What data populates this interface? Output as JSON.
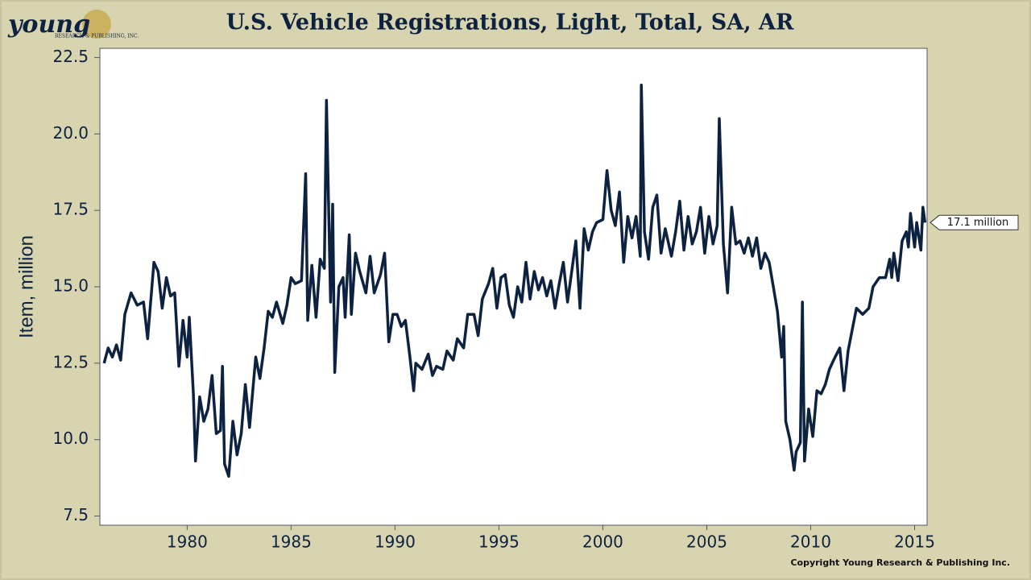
{
  "logo": {
    "name": "young",
    "sub": "RESEARCH & PUBLISHING, INC."
  },
  "chart_data": {
    "type": "line",
    "title": "U.S. Vehicle Registrations, Light, Total, SA, AR",
    "y_label": "Item, million",
    "copyright": "Copyright Young Research & Publishing Inc.",
    "annotation": "17.1 million",
    "xlim": [
      1975.8,
      2015.6
    ],
    "ylim": [
      7.2,
      22.8
    ],
    "xticks": [
      1980,
      1985,
      1990,
      1995,
      2000,
      2005,
      2010,
      2015
    ],
    "yticks": [
      7.5,
      {
        "value": 10,
        "label": "10.0"
      },
      12.5,
      {
        "value": 15,
        "label": "15.0"
      },
      17.5,
      {
        "value": 20,
        "label": "20.0"
      },
      22.5
    ],
    "grid": false,
    "series": [
      {
        "name": "Vehicle Registrations",
        "color": "#0d2240",
        "x": [
          1976.0,
          1976.2,
          1976.4,
          1976.6,
          1976.8,
          1977.0,
          1977.3,
          1977.6,
          1977.9,
          1978.1,
          1978.4,
          1978.6,
          1978.8,
          1979.0,
          1979.2,
          1979.4,
          1979.6,
          1979.8,
          1980.0,
          1980.1,
          1980.3,
          1980.4,
          1980.6,
          1980.8,
          1981.0,
          1981.2,
          1981.4,
          1981.6,
          1981.7,
          1981.8,
          1982.0,
          1982.2,
          1982.4,
          1982.6,
          1982.8,
          1983.0,
          1983.3,
          1983.5,
          1983.7,
          1983.9,
          1984.1,
          1984.3,
          1984.6,
          1984.8,
          1985.0,
          1985.2,
          1985.5,
          1985.7,
          1985.8,
          1986.0,
          1986.2,
          1986.4,
          1986.6,
          1986.7,
          1986.9,
          1987.0,
          1987.1,
          1987.3,
          1987.5,
          1987.6,
          1987.8,
          1987.9,
          1988.1,
          1988.3,
          1988.6,
          1988.8,
          1989.0,
          1989.3,
          1989.5,
          1989.7,
          1989.9,
          1990.1,
          1990.3,
          1990.5,
          1990.7,
          1990.9,
          1991.0,
          1991.3,
          1991.6,
          1991.8,
          1992.0,
          1992.3,
          1992.5,
          1992.8,
          1993.0,
          1993.3,
          1993.5,
          1993.8,
          1994.0,
          1994.2,
          1994.5,
          1994.7,
          1994.9,
          1995.1,
          1995.3,
          1995.5,
          1995.7,
          1995.9,
          1996.1,
          1996.3,
          1996.5,
          1996.7,
          1996.9,
          1997.1,
          1997.3,
          1997.5,
          1997.7,
          1997.9,
          1998.1,
          1998.3,
          1998.5,
          1998.7,
          1998.9,
          1999.1,
          1999.3,
          1999.5,
          1999.7,
          2000.0,
          2000.2,
          2000.4,
          2000.6,
          2000.8,
          2001.0,
          2001.2,
          2001.4,
          2001.6,
          2001.8,
          2001.85,
          2002.0,
          2002.2,
          2002.4,
          2002.6,
          2002.8,
          2003.0,
          2003.3,
          2003.5,
          2003.7,
          2003.9,
          2004.1,
          2004.3,
          2004.5,
          2004.7,
          2004.9,
          2005.1,
          2005.3,
          2005.5,
          2005.6,
          2005.8,
          2006.0,
          2006.2,
          2006.4,
          2006.6,
          2006.8,
          2007.0,
          2007.2,
          2007.4,
          2007.6,
          2007.8,
          2008.0,
          2008.2,
          2008.4,
          2008.6,
          2008.7,
          2008.8,
          2009.0,
          2009.2,
          2009.3,
          2009.5,
          2009.6,
          2009.7,
          2009.9,
          2010.1,
          2010.3,
          2010.5,
          2010.7,
          2010.9,
          2011.1,
          2011.4,
          2011.6,
          2011.8,
          2012.0,
          2012.2,
          2012.5,
          2012.8,
          2013.0,
          2013.3,
          2013.6,
          2013.8,
          2013.9,
          2014.0,
          2014.2,
          2014.4,
          2014.6,
          2014.7,
          2014.8,
          2015.0,
          2015.1,
          2015.3,
          2015.4,
          2015.5
        ],
        "values": [
          12.5,
          13.0,
          12.7,
          13.1,
          12.6,
          14.1,
          14.8,
          14.4,
          14.5,
          13.3,
          15.8,
          15.5,
          14.3,
          15.3,
          14.7,
          14.8,
          12.4,
          13.9,
          12.7,
          14.0,
          11.5,
          9.3,
          11.4,
          10.6,
          11.0,
          12.1,
          10.2,
          10.3,
          12.4,
          9.2,
          8.8,
          10.6,
          9.5,
          10.2,
          11.8,
          10.4,
          12.7,
          12.0,
          13.0,
          14.2,
          14.0,
          14.5,
          13.8,
          14.4,
          15.3,
          15.1,
          15.2,
          18.7,
          13.9,
          15.7,
          14.0,
          15.9,
          15.6,
          21.1,
          14.5,
          17.7,
          12.2,
          15.0,
          15.3,
          14.0,
          16.7,
          14.1,
          16.1,
          15.5,
          14.8,
          16.0,
          14.8,
          15.4,
          16.1,
          13.2,
          14.1,
          14.1,
          13.7,
          13.9,
          12.8,
          11.6,
          12.5,
          12.3,
          12.8,
          12.1,
          12.4,
          12.3,
          12.9,
          12.6,
          13.3,
          13.0,
          14.1,
          14.1,
          13.4,
          14.6,
          15.1,
          15.6,
          14.3,
          15.3,
          15.4,
          14.4,
          14.0,
          15.0,
          14.5,
          15.8,
          14.6,
          15.5,
          14.9,
          15.3,
          14.7,
          15.2,
          14.3,
          15.1,
          15.8,
          14.5,
          15.5,
          16.5,
          14.3,
          16.9,
          16.2,
          16.8,
          17.1,
          17.2,
          18.8,
          17.5,
          17.0,
          18.1,
          15.8,
          17.3,
          16.6,
          17.3,
          16.0,
          21.6,
          16.8,
          15.9,
          17.6,
          18.0,
          16.1,
          16.9,
          16.0,
          16.8,
          17.8,
          16.2,
          17.3,
          16.4,
          16.8,
          17.6,
          16.1,
          17.3,
          16.4,
          17.0,
          20.5,
          16.4,
          14.8,
          17.6,
          16.4,
          16.5,
          16.1,
          16.6,
          16.0,
          16.6,
          15.6,
          16.1,
          15.8,
          15.0,
          14.2,
          12.7,
          13.7,
          10.6,
          10.0,
          9.0,
          9.6,
          9.9,
          14.5,
          9.3,
          11.0,
          10.1,
          11.6,
          11.5,
          11.8,
          12.3,
          12.6,
          13.0,
          11.6,
          12.9,
          13.6,
          14.3,
          14.1,
          14.3,
          15.0,
          15.3,
          15.3,
          15.9,
          15.3,
          16.1,
          15.2,
          16.5,
          16.8,
          16.3,
          17.4,
          16.3,
          17.1,
          16.2,
          17.6,
          17.1
        ]
      }
    ]
  }
}
